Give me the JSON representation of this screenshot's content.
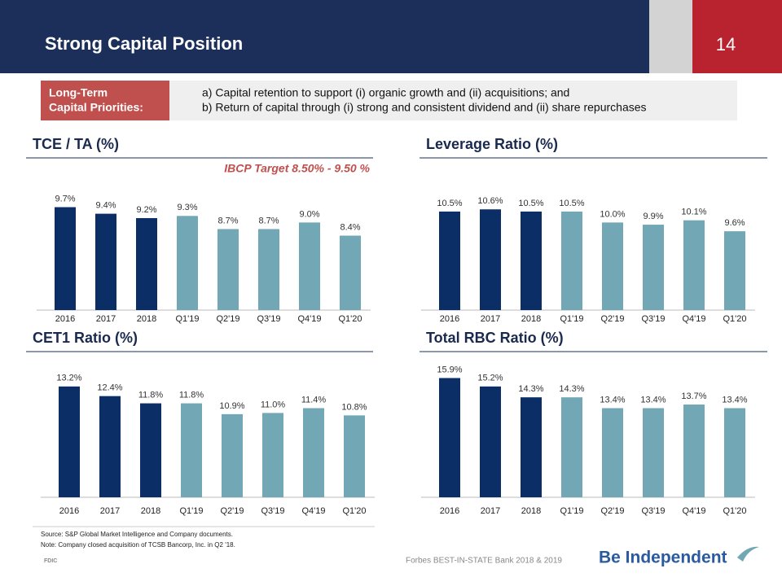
{
  "header": {
    "title": "Strong Capital Position",
    "page_number": "14"
  },
  "priorities": {
    "label": [
      "Long-Term",
      "Capital Priorities:"
    ],
    "lines": [
      "a) Capital retention to support (i) organic growth and (ii) acquisitions; and",
      "b) Return of capital through (i) strong and consistent dividend and (ii) share repurchases"
    ]
  },
  "chart_data": [
    {
      "type": "bar",
      "title": "TCE / TA (%)",
      "annotation": "IBCP Target 8.50% - 9.50 %",
      "categories": [
        "2016",
        "2017",
        "2018",
        "Q1'19",
        "Q2'19",
        "Q3'19",
        "Q4'19",
        "Q1'20"
      ],
      "values": [
        9.7,
        9.4,
        9.2,
        9.3,
        8.7,
        8.7,
        9.0,
        8.4
      ],
      "value_labels": [
        "9.7%",
        "9.4%",
        "9.2%",
        "9.3%",
        "8.7%",
        "8.7%",
        "9.0%",
        "8.4%"
      ],
      "colors": [
        "#0c2e66",
        "#0c2e66",
        "#0c2e66",
        "#72a8b6",
        "#72a8b6",
        "#72a8b6",
        "#72a8b6",
        "#72a8b6"
      ],
      "ylim": [
        5,
        10.5
      ]
    },
    {
      "type": "bar",
      "title": "Leverage Ratio (%)",
      "categories": [
        "2016",
        "2017",
        "2018",
        "Q1'19",
        "Q2'19",
        "Q3'19",
        "Q4'19",
        "Q1'20"
      ],
      "values": [
        10.5,
        10.6,
        10.5,
        10.5,
        10.0,
        9.9,
        10.1,
        9.6
      ],
      "value_labels": [
        "10.5%",
        "10.6%",
        "10.5%",
        "10.5%",
        "10.0%",
        "9.9%",
        "10.1%",
        "9.6%"
      ],
      "colors": [
        "#0c2e66",
        "#0c2e66",
        "#0c2e66",
        "#72a8b6",
        "#72a8b6",
        "#72a8b6",
        "#72a8b6",
        "#72a8b6"
      ],
      "ylim": [
        6,
        11.5
      ]
    },
    {
      "type": "bar",
      "title": "CET1 Ratio (%)",
      "categories": [
        "2016",
        "2017",
        "2018",
        "Q1'19",
        "Q2'19",
        "Q3'19",
        "Q4'19",
        "Q1'20"
      ],
      "values": [
        13.2,
        12.4,
        11.8,
        11.8,
        10.9,
        11.0,
        11.4,
        10.8
      ],
      "value_labels": [
        "13.2%",
        "12.4%",
        "11.8%",
        "11.8%",
        "10.9%",
        "11.0%",
        "11.4%",
        "10.8%"
      ],
      "colors": [
        "#0c2e66",
        "#0c2e66",
        "#0c2e66",
        "#72a8b6",
        "#72a8b6",
        "#72a8b6",
        "#72a8b6",
        "#72a8b6"
      ],
      "ylim": [
        4,
        14
      ]
    },
    {
      "type": "bar",
      "title": "Total RBC Ratio (%)",
      "categories": [
        "2016",
        "2017",
        "2018",
        "Q1'19",
        "Q2'19",
        "Q3'19",
        "Q4'19",
        "Q1'20"
      ],
      "values": [
        15.9,
        15.2,
        14.3,
        14.3,
        13.4,
        13.4,
        13.7,
        13.4
      ],
      "value_labels": [
        "15.9%",
        "15.2%",
        "14.3%",
        "14.3%",
        "13.4%",
        "13.4%",
        "13.7%",
        "13.4%"
      ],
      "colors": [
        "#0c2e66",
        "#0c2e66",
        "#0c2e66",
        "#72a8b6",
        "#72a8b6",
        "#72a8b6",
        "#72a8b6",
        "#72a8b6"
      ],
      "ylim": [
        6,
        16
      ]
    }
  ],
  "footer": {
    "notes": [
      "Source: S&P Global Market Intelligence and Company documents.",
      "Note: Company closed acquisition of TCSB Bancorp, Inc. in Q2 '18."
    ],
    "fdic": "FDIC",
    "award": "Forbes BEST-IN-STATE Bank  2018 & 2019",
    "brand": "Be Independent"
  }
}
